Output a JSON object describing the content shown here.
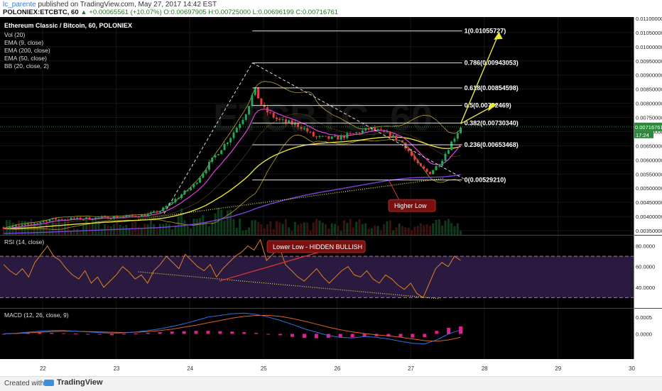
{
  "header": {
    "author": "lc_parente",
    "published": "published on TradingView.com, May 27, 2017 14:42 EST",
    "symbol": "POLONIEX:ETCBTC, 60",
    "change": "▲ +0.00065561 (+10.07%)",
    "ohlc": "O:0.00697905 H:0.00725000 L:0.00696199 C:0.00716761"
  },
  "footer": {
    "created_with": "Created with",
    "brand": "TradingView"
  },
  "colors": {
    "bull": "#26a65b",
    "bear": "#e04040",
    "ema9": "#e040e0",
    "ema50": "#e8e040",
    "ema200": "#8040e0",
    "bb": "#b8a030",
    "fib": "#e0e0e0",
    "arrow": "#e8e840",
    "rsi": "#e08020",
    "macd": "#3070e0",
    "signal": "#e06020",
    "hist": "#e02090",
    "rsi_band": "#2a1a40",
    "note_bg": "#7a1010"
  },
  "chart_data": [
    {
      "type": "candlestick",
      "title": "Ethereum Classic / Bitcoin, 60, POLONIEX",
      "watermark": "ETCBTC, 60",
      "legend": [
        "Vol (20)",
        "EMA (9, close)",
        "EMA (200, close)",
        "EMA (50, close)",
        "BB (20, close, 2)"
      ],
      "ylim": [
        0.00335,
        0.01105
      ],
      "y_ticks": [
        "0.01100000",
        "0.01050000",
        "0.01000000",
        "0.00950000",
        "0.00900000",
        "0.00850000",
        "0.00800000",
        "0.00750000",
        "0.00700000",
        "0.00650000",
        "0.00600000",
        "0.00550000",
        "0.00500000",
        "0.00450000",
        "0.00400000",
        "0.00350000"
      ],
      "last_price": "0.00716761",
      "countdown": "17:24",
      "x_ticks": [
        "22",
        "23",
        "24",
        "25",
        "26",
        "27",
        "28",
        "29",
        "30"
      ],
      "x_range": [
        21.45,
        30.0
      ],
      "price_path": [
        [
          21.47,
          0.00362
        ],
        [
          21.8,
          0.0037
        ],
        [
          22.1,
          0.0039
        ],
        [
          22.5,
          0.00392
        ],
        [
          23.0,
          0.00398
        ],
        [
          23.4,
          0.00405
        ],
        [
          23.6,
          0.0042
        ],
        [
          23.8,
          0.0046
        ],
        [
          24.05,
          0.0051
        ],
        [
          24.3,
          0.006
        ],
        [
          24.55,
          0.0068
        ],
        [
          24.75,
          0.0076
        ],
        [
          24.88,
          0.0085
        ],
        [
          25.0,
          0.0078
        ],
        [
          25.2,
          0.0074
        ],
        [
          25.5,
          0.0072
        ],
        [
          25.7,
          0.0068
        ],
        [
          25.95,
          0.00675
        ],
        [
          26.2,
          0.0069
        ],
        [
          26.45,
          0.0071
        ],
        [
          26.7,
          0.0069
        ],
        [
          26.9,
          0.0066
        ],
        [
          27.1,
          0.0058
        ],
        [
          27.25,
          0.00552
        ],
        [
          27.4,
          0.0059
        ],
        [
          27.55,
          0.0066
        ],
        [
          27.68,
          0.00718
        ]
      ],
      "fib_levels": [
        {
          "label": "1(0.01055727)",
          "value": 0.01055727
        },
        {
          "label": "0.786(0.00943053)",
          "value": 0.00943053
        },
        {
          "label": "0.618(0.00854598)",
          "value": 0.00854598
        },
        {
          "label": "0.5(0.00792469)",
          "value": 0.00792469
        },
        {
          "label": "0.382(0.00730340)",
          "value": 0.0073034
        },
        {
          "label": "0.236(0.00653468)",
          "value": 0.00653468
        },
        {
          "label": "0(0.00529210)",
          "value": 0.0052921
        }
      ],
      "annotations": [
        {
          "text": "Higher Low"
        }
      ]
    },
    {
      "type": "line",
      "title": "RSI (14, close)",
      "ylim": [
        20,
        90
      ],
      "y_ticks": [
        "80.0000",
        "60.0000",
        "40.0000"
      ],
      "bands": [
        70,
        30
      ],
      "values": [
        62,
        56,
        52,
        58,
        50,
        64,
        72,
        80,
        70,
        66,
        58,
        52,
        48,
        56,
        44,
        50,
        40,
        46,
        52,
        60,
        55,
        48,
        52,
        44,
        56,
        62,
        70,
        64,
        58,
        72,
        66,
        60,
        56,
        62,
        50,
        58,
        64,
        70,
        74,
        80,
        76,
        86,
        66,
        72,
        80,
        62,
        56,
        50,
        46,
        52,
        58,
        50,
        44,
        50,
        56,
        60,
        52,
        50,
        56,
        48,
        44,
        52,
        48,
        42,
        38,
        44,
        34,
        30,
        44,
        58,
        64,
        60,
        70,
        66
      ],
      "annotations": [
        {
          "text": "Lower Low - HIDDEN BULLISH"
        }
      ]
    },
    {
      "type": "macd",
      "title": "MACD (12, 26, close, 9)",
      "ylim": [
        -0.00075,
        0.00075
      ],
      "y_ticks": [
        "0.0005",
        "0.0000"
      ],
      "macd": [
        0,
        2e-05,
        5e-05,
        8e-05,
        0.0001,
        0.0001,
        8e-05,
        6e-05,
        4e-05,
        2e-05,
        3e-05,
        6e-05,
        0.0001,
        0.00015,
        0.00022,
        0.0003,
        0.0004,
        0.0005,
        0.00055,
        0.0006,
        0.00062,
        0.00058,
        0.0005,
        0.0004,
        0.00028,
        0.00015,
        5e-05,
        -5e-05,
        -0.0001,
        -0.00012,
        -8e-05,
        -0.0001,
        -0.00015,
        -0.00022,
        -0.00028,
        -0.0003,
        -0.00018,
        0,
        0.00012
      ],
      "signal": [
        0,
        1e-05,
        3e-05,
        5e-05,
        7e-05,
        8e-05,
        8e-05,
        7e-05,
        6e-05,
        5e-05,
        4e-05,
        5e-05,
        7e-05,
        0.0001,
        0.00014,
        0.0002,
        0.00026,
        0.00033,
        0.0004,
        0.00047,
        0.00052,
        0.00055,
        0.00055,
        0.00052,
        0.00046,
        0.00038,
        0.00029,
        0.0002,
        0.00012,
        6e-05,
        1e-05,
        -3e-05,
        -6e-05,
        -0.0001,
        -0.00015,
        -0.0002,
        -0.00022,
        -0.00018,
        -0.0001
      ],
      "hist": [
        0,
        2e-05,
        3e-05,
        4e-05,
        3e-05,
        2e-05,
        1e-05,
        -1e-05,
        -2e-05,
        -4e-05,
        -2e-05,
        1e-05,
        3e-05,
        5e-05,
        7e-05,
        8e-05,
        9e-05,
        9e-05,
        8e-05,
        7e-05,
        5e-05,
        3e-05,
        -1e-05,
        -4e-05,
        -9e-05,
        -0.00012,
        -0.00013,
        -0.00012,
        -0.00011,
        -0.0001,
        -9e-05,
        -7e-05,
        -8e-05,
        -9e-05,
        -0.00011,
        -0.0001,
        9e-05,
        0.00018,
        0.00022
      ]
    }
  ]
}
